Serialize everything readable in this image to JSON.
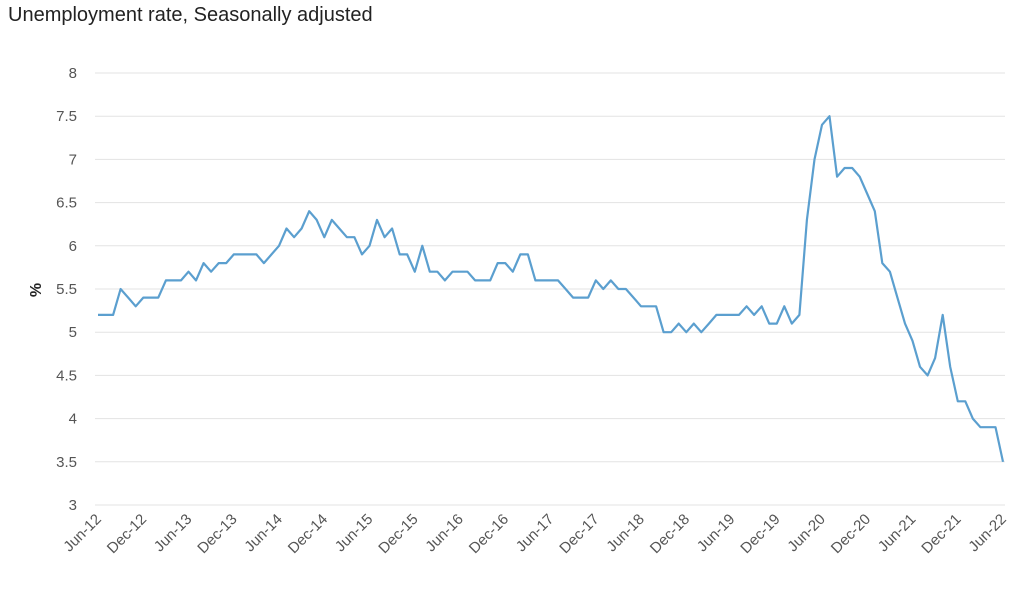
{
  "chart_data": {
    "type": "line",
    "title": "Unemployment rate, Seasonally adjusted",
    "xlabel": "",
    "ylabel": "%",
    "ylim": [
      3,
      8
    ],
    "yticks": [
      "3",
      "3.5",
      "4",
      "4.5",
      "5",
      "5.5",
      "6",
      "6.5",
      "7",
      "7.5",
      "8"
    ],
    "xticks": [
      "Jun-12",
      "Dec-12",
      "Jun-13",
      "Dec-13",
      "Jun-14",
      "Dec-14",
      "Jun-15",
      "Dec-15",
      "Jun-16",
      "Dec-16",
      "Jun-17",
      "Dec-17",
      "Jun-18",
      "Dec-18",
      "Jun-19",
      "Dec-19",
      "Jun-20",
      "Dec-20",
      "Jun-21",
      "Dec-21",
      "Jun-22"
    ],
    "x_start": "Jun-12",
    "x_end": "Jun-22",
    "frequency": "monthly",
    "grid": true,
    "line_color": "#5b9fcf",
    "values": [
      5.2,
      5.2,
      5.2,
      5.5,
      5.4,
      5.3,
      5.4,
      5.4,
      5.4,
      5.6,
      5.6,
      5.6,
      5.7,
      5.6,
      5.8,
      5.7,
      5.8,
      5.8,
      5.9,
      5.9,
      5.9,
      5.9,
      5.8,
      5.9,
      6.0,
      6.2,
      6.1,
      6.2,
      6.4,
      6.3,
      6.1,
      6.3,
      6.2,
      6.1,
      6.1,
      5.9,
      6.0,
      6.3,
      6.1,
      6.2,
      5.9,
      5.9,
      5.7,
      6.0,
      5.7,
      5.7,
      5.6,
      5.7,
      5.7,
      5.7,
      5.6,
      5.6,
      5.6,
      5.8,
      5.8,
      5.7,
      5.9,
      5.9,
      5.6,
      5.6,
      5.6,
      5.6,
      5.5,
      5.4,
      5.4,
      5.4,
      5.6,
      5.5,
      5.6,
      5.5,
      5.5,
      5.4,
      5.3,
      5.3,
      5.3,
      5.0,
      5.0,
      5.1,
      5.0,
      5.1,
      5.0,
      5.1,
      5.2,
      5.2,
      5.2,
      5.2,
      5.3,
      5.2,
      5.3,
      5.1,
      5.1,
      5.3,
      5.1,
      5.2,
      6.3,
      7.0,
      7.4,
      7.5,
      6.8,
      6.9,
      6.9,
      6.8,
      6.6,
      6.4,
      5.8,
      5.7,
      5.4,
      5.1,
      4.9,
      4.6,
      4.5,
      4.7,
      5.2,
      4.6,
      4.2,
      4.2,
      4.0,
      3.9,
      3.9,
      3.9,
      3.5
    ]
  }
}
